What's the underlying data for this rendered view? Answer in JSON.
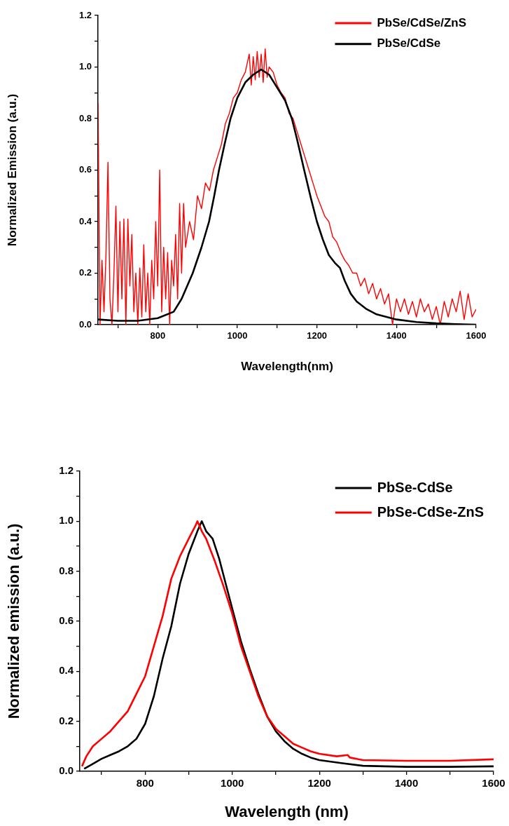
{
  "chart_data": [
    {
      "type": "line",
      "xlabel": "Wavelength(nm)",
      "ylabel": "Normalized Emission (a.u.)",
      "legend": "top right",
      "grid": false,
      "marker": "none",
      "line_style": "solid",
      "xlim": [
        650,
        1600
      ],
      "ylim": [
        0,
        1.2
      ],
      "xticks": [
        {
          "value": 700,
          "label": null
        },
        800,
        {
          "value": 900,
          "label": null
        },
        1000,
        {
          "value": 1100,
          "label": null
        },
        1200,
        {
          "value": 1300,
          "label": null
        },
        1400,
        {
          "value": 1500,
          "label": null
        },
        1600
      ],
      "yticks": [
        "0.0",
        {
          "value": 0.1,
          "label": null
        },
        0.2,
        {
          "value": 0.3,
          "label": null
        },
        0.4,
        {
          "value": 0.5,
          "label": null
        },
        0.6,
        {
          "value": 0.7,
          "label": null
        },
        0.8,
        {
          "value": 0.9,
          "label": null
        },
        {
          "value": 1,
          "label": "1.0"
        },
        {
          "value": 1.1,
          "label": null
        },
        1.2
      ],
      "series": [
        {
          "name": "PbSe/CdSe/ZnS",
          "color": "#ff0000",
          "x": [
            650,
            655,
            660,
            665,
            670,
            675,
            680,
            685,
            690,
            695,
            700,
            705,
            710,
            715,
            720,
            725,
            730,
            735,
            740,
            745,
            750,
            755,
            760,
            765,
            770,
            775,
            780,
            785,
            790,
            795,
            800,
            805,
            810,
            815,
            820,
            825,
            830,
            835,
            840,
            845,
            850,
            855,
            860,
            865,
            870,
            880,
            890,
            900,
            910,
            920,
            930,
            940,
            950,
            960,
            970,
            980,
            990,
            1000,
            1010,
            1020,
            1030,
            1035,
            1040,
            1045,
            1050,
            1055,
            1060,
            1065,
            1070,
            1075,
            1080,
            1090,
            1100,
            1110,
            1120,
            1130,
            1140,
            1150,
            1160,
            1170,
            1180,
            1190,
            1200,
            1210,
            1220,
            1230,
            1240,
            1250,
            1260,
            1270,
            1280,
            1290,
            1300,
            1310,
            1320,
            1330,
            1340,
            1350,
            1360,
            1370,
            1380,
            1390,
            1400,
            1410,
            1420,
            1430,
            1440,
            1450,
            1460,
            1470,
            1480,
            1490,
            1500,
            1510,
            1520,
            1530,
            1540,
            1550,
            1560,
            1570,
            1580,
            1590,
            1600
          ],
          "values": [
            0.86,
            0,
            0.25,
            0.05,
            0.27,
            0.63,
            0.1,
            0,
            0.2,
            0.46,
            0.05,
            0.4,
            0.1,
            0.41,
            0,
            0.41,
            0.15,
            0.35,
            0.05,
            0.2,
            0,
            0.22,
            0.03,
            0.31,
            0.05,
            0.2,
            0,
            0.25,
            0.1,
            0.4,
            0.15,
            0.6,
            0.05,
            0.3,
            0.1,
            0.28,
            0,
            0.25,
            0.15,
            0.35,
            0.1,
            0.47,
            0.2,
            0.47,
            0.3,
            0.4,
            0.33,
            0.5,
            0.45,
            0.55,
            0.52,
            0.6,
            0.65,
            0.7,
            0.78,
            0.82,
            0.88,
            0.9,
            0.95,
            0.98,
            1.05,
            0.93,
            1.04,
            0.95,
            1.06,
            0.96,
            1.05,
            0.94,
            1.07,
            0.96,
            1,
            0.98,
            0.93,
            0.9,
            0.88,
            0.82,
            0.8,
            0.75,
            0.7,
            0.65,
            0.6,
            0.55,
            0.5,
            0.46,
            0.42,
            0.4,
            0.34,
            0.32,
            0.28,
            0.25,
            0.23,
            0.2,
            0.2,
            0.15,
            0.18,
            0.12,
            0.16,
            0.1,
            0.14,
            0.08,
            0.12,
            0,
            0.1,
            0.05,
            0.1,
            0.04,
            0.09,
            0.03,
            0.1,
            0.05,
            0.08,
            0.02,
            0.07,
            0,
            0.09,
            0.03,
            0.1,
            0.05,
            0.13,
            0.02,
            0.12,
            0.03,
            0.06
          ]
        },
        {
          "name": "PbSe/CdSe",
          "color": "#000000",
          "x": [
            650,
            700,
            750,
            800,
            840,
            860,
            888,
            910,
            929,
            942,
            954,
            968,
            983,
            1000,
            1020,
            1040,
            1060,
            1080,
            1100,
            1120,
            1137,
            1150,
            1168,
            1185,
            1200,
            1215,
            1230,
            1245,
            1258,
            1270,
            1285,
            1300,
            1325,
            1350,
            1400,
            1450,
            1500,
            1550,
            1600
          ],
          "values": [
            0.02,
            0.015,
            0.015,
            0.025,
            0.05,
            0.1,
            0.2,
            0.3,
            0.4,
            0.5,
            0.6,
            0.7,
            0.8,
            0.88,
            0.94,
            0.97,
            0.99,
            0.97,
            0.92,
            0.87,
            0.8,
            0.72,
            0.6,
            0.49,
            0.4,
            0.33,
            0.27,
            0.24,
            0.22,
            0.17,
            0.12,
            0.09,
            0.06,
            0.04,
            0.02,
            0.01,
            0.005,
            0.002,
            0
          ]
        }
      ]
    },
    {
      "type": "line",
      "xlabel": "Wavelength (nm)",
      "ylabel": "Normalized emission (a.u.)",
      "legend": "top right",
      "grid": false,
      "marker": "none",
      "line_style": "solid",
      "xlim": [
        650,
        1600
      ],
      "ylim": [
        0,
        1.2
      ],
      "xticks": [
        {
          "value": 700,
          "label": null
        },
        800,
        {
          "value": 900,
          "label": null
        },
        1000,
        {
          "value": 1100,
          "label": null
        },
        1200,
        {
          "value": 1300,
          "label": null
        },
        1400,
        {
          "value": 1500,
          "label": null
        },
        1600
      ],
      "yticks": [
        "0.0",
        {
          "value": 0.1,
          "label": null
        },
        0.2,
        {
          "value": 0.3,
          "label": null
        },
        0.4,
        {
          "value": 0.5,
          "label": null
        },
        0.6,
        {
          "value": 0.7,
          "label": null
        },
        0.8,
        {
          "value": 0.9,
          "label": null
        },
        {
          "value": 1,
          "label": "1.0"
        },
        {
          "value": 1.1,
          "label": null
        },
        1.2
      ],
      "series": [
        {
          "name": "PbSe-CdSe",
          "color": "#000000",
          "x": [
            660,
            680,
            700,
            720,
            740,
            760,
            780,
            800,
            820,
            840,
            860,
            880,
            900,
            920,
            930,
            940,
            955,
            970,
            985,
            1000,
            1020,
            1040,
            1060,
            1080,
            1100,
            1120,
            1140,
            1160,
            1180,
            1200,
            1250,
            1300,
            1400,
            1500,
            1600
          ],
          "values": [
            0.01,
            0.03,
            0.05,
            0.065,
            0.08,
            0.1,
            0.13,
            0.19,
            0.3,
            0.45,
            0.58,
            0.75,
            0.87,
            0.96,
            1,
            0.96,
            0.93,
            0.85,
            0.75,
            0.65,
            0.52,
            0.41,
            0.31,
            0.22,
            0.16,
            0.12,
            0.09,
            0.07,
            0.055,
            0.045,
            0.033,
            0.022,
            0.018,
            0.018,
            0.02
          ]
        },
        {
          "name": "PbSe-CdSe-ZnS",
          "color": "#ff0000",
          "x": [
            655,
            665,
            680,
            700,
            720,
            740,
            760,
            780,
            800,
            820,
            840,
            860,
            880,
            900,
            915,
            920,
            930,
            940,
            960,
            980,
            1000,
            1020,
            1040,
            1060,
            1080,
            1100,
            1120,
            1140,
            1160,
            1180,
            1200,
            1240,
            1265,
            1270,
            1300,
            1400,
            1500,
            1600
          ],
          "values": [
            0.02,
            0.06,
            0.1,
            0.13,
            0.16,
            0.2,
            0.24,
            0.31,
            0.38,
            0.5,
            0.62,
            0.77,
            0.86,
            0.93,
            0.98,
            1,
            0.96,
            0.93,
            0.84,
            0.74,
            0.63,
            0.5,
            0.4,
            0.3,
            0.22,
            0.17,
            0.14,
            0.11,
            0.095,
            0.08,
            0.07,
            0.06,
            0.065,
            0.055,
            0.045,
            0.042,
            0.042,
            0.048
          ]
        }
      ]
    }
  ]
}
